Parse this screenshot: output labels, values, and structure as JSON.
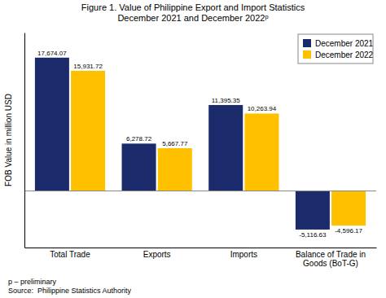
{
  "chart_data": {
    "type": "bar",
    "title": "Figure 1. Value of Philippine Export and Import Statistics\nDecember 2021 and December 2022ᵖ",
    "y_label": "FOB Value in million USD",
    "categories": [
      "Total Trade",
      "Exports",
      "Imports",
      "Balance of Trade in\nGoods (BoT-G)"
    ],
    "series": [
      {
        "name": "December 2021",
        "color": "#1B2A6B",
        "values": [
          17674.07,
          6278.72,
          11395.35,
          -5116.63
        ],
        "value_labels": [
          "17,674.07",
          "6,278.72",
          "11,395.35",
          "-5,116.63"
        ]
      },
      {
        "name": "December 2022",
        "color": "#FFC000",
        "values": [
          15931.72,
          5667.77,
          10263.94,
          -4596.17
        ],
        "value_labels": [
          "15,931.72",
          "5,667.77",
          "10,263.94",
          "-4,596.17"
        ]
      }
    ],
    "ylim": [
      -7500,
      21000
    ],
    "data_labels": true,
    "tick_labels": "x",
    "legend": "upper right",
    "grid": false,
    "annotations": [
      "p – preliminary\nSource:  Philippine Statistics Authority"
    ]
  }
}
